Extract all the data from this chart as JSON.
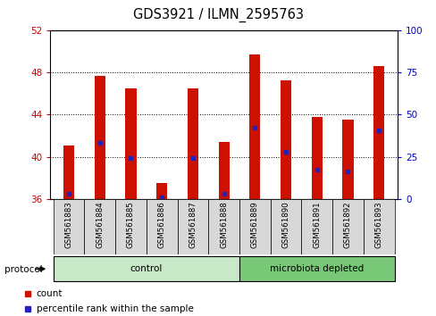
{
  "title": "GDS3921 / ILMN_2595763",
  "samples": [
    "GSM561883",
    "GSM561884",
    "GSM561885",
    "GSM561886",
    "GSM561887",
    "GSM561888",
    "GSM561889",
    "GSM561890",
    "GSM561891",
    "GSM561892",
    "GSM561893"
  ],
  "count_values": [
    41.1,
    47.7,
    46.5,
    37.5,
    46.5,
    41.4,
    49.7,
    47.2,
    43.8,
    43.5,
    48.6
  ],
  "percentile_left": [
    36.5,
    41.3,
    39.9,
    36.2,
    39.9,
    36.5,
    42.8,
    40.5,
    38.8,
    38.6,
    42.5
  ],
  "groups": [
    {
      "label": "control",
      "start": 0,
      "end": 6,
      "color": "#c8e8c8"
    },
    {
      "label": "microbiota depleted",
      "start": 6,
      "end": 11,
      "color": "#78c878"
    }
  ],
  "ylim_left": [
    36,
    52
  ],
  "ylim_right": [
    0,
    100
  ],
  "yticks_left": [
    36,
    40,
    44,
    48,
    52
  ],
  "yticks_right": [
    0,
    25,
    50,
    75,
    100
  ],
  "bar_color": "#cc1100",
  "dot_color": "#2222bb",
  "bar_width": 0.35,
  "tick_label_color_left": "#cc0000",
  "tick_label_color_right": "#0000cc",
  "legend_items": [
    {
      "label": "count",
      "color": "#cc1100"
    },
    {
      "label": "percentile rank within the sample",
      "color": "#2222bb"
    }
  ],
  "protocol_label": "protocol",
  "sample_box_color": "#d8d8d8"
}
